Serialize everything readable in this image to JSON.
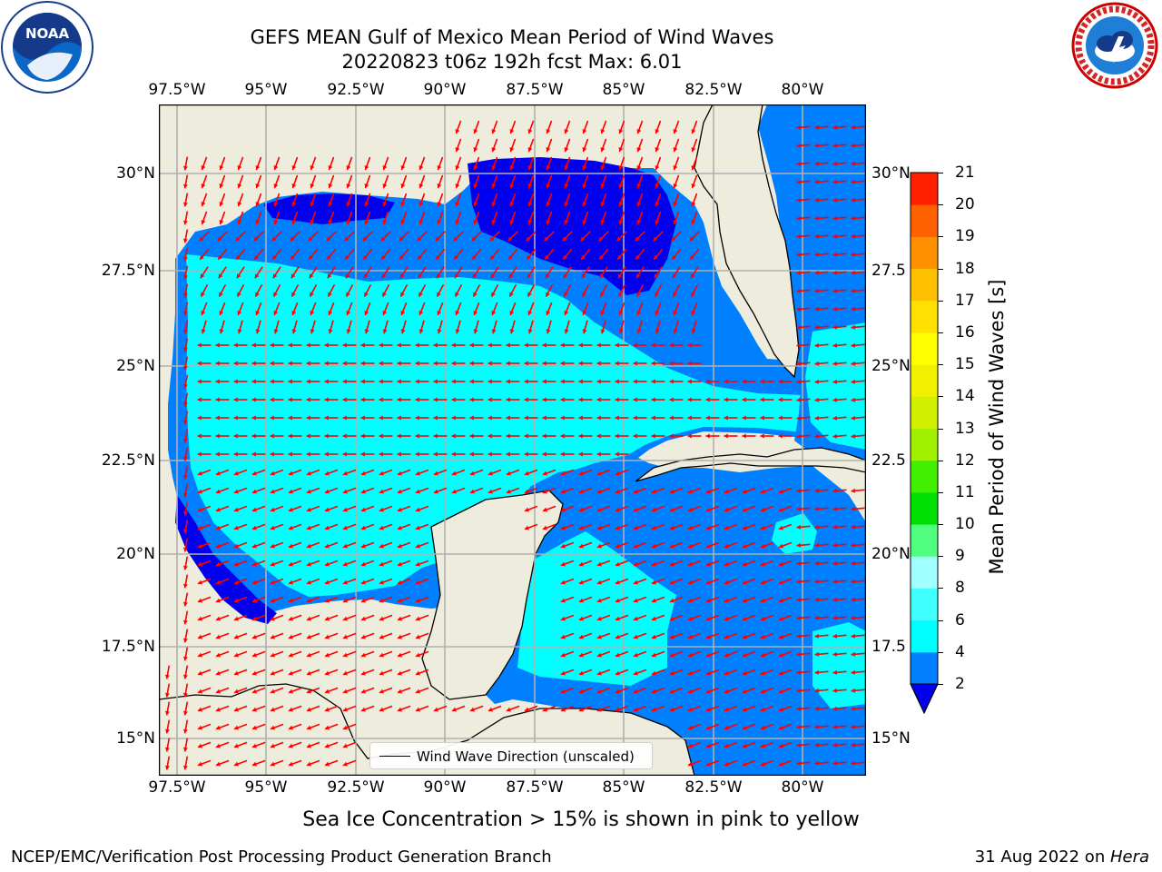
{
  "title": {
    "line1": "GEFS MEAN Gulf of Mexico Mean Period of Wind Waves",
    "line2": "20220823 t06z 192h fcst   Max: 6.01"
  },
  "logos": {
    "noaa": {
      "text": "NOAA",
      "icon": "noaa-logo-icon"
    },
    "nws": {
      "text": "NATIONAL WEATHER SERVICE",
      "icon": "nws-logo-icon"
    }
  },
  "map": {
    "lon_ticks": [
      "97.5°W",
      "95°W",
      "92.5°W",
      "90°W",
      "87.5°W",
      "85°W",
      "82.5°W",
      "80°W"
    ],
    "lat_ticks_left": [
      "30°N",
      "27.5°N",
      "25°N",
      "22.5°N",
      "20°N",
      "17.5°N",
      "15°N"
    ],
    "lat_ticks_right": [
      "30°N",
      "27.5",
      "25°N",
      "22.5",
      "20°N",
      "17.5",
      "15°N"
    ],
    "legend_label": "Wind Wave Direction (unscaled)",
    "colors": {
      "land": "#eeecdc",
      "ocean_dark": "#0000ee",
      "ocean_mid": "#0080ff",
      "ocean_light": "#00ffff",
      "arrow": "#ff0000",
      "grid": "#b0b0b0"
    }
  },
  "colorbar": {
    "label": "Mean Period of Wind Waves [s]",
    "ticks": [
      "2",
      "4",
      "6",
      "8",
      "9",
      "10",
      "11",
      "12",
      "13",
      "14",
      "15",
      "16",
      "17",
      "18",
      "19",
      "20",
      "21"
    ],
    "colors": [
      "#0080ff",
      "#00ffff",
      "#40ffff",
      "#a0ffff",
      "#50ff80",
      "#00e000",
      "#40f000",
      "#a0f000",
      "#d0f000",
      "#f0f000",
      "#ffff00",
      "#ffe000",
      "#ffc000",
      "#ff9000",
      "#ff6000",
      "#ff2000"
    ],
    "extend_color": "#0000ee"
  },
  "note": "Sea Ice Concentration > 15% is shown in pink to yellow",
  "footer": {
    "left": "NCEP/EMC/Verification Post Processing Product Generation Branch",
    "right_date": "31 Aug 2022 on ",
    "right_machine": "Hera"
  }
}
